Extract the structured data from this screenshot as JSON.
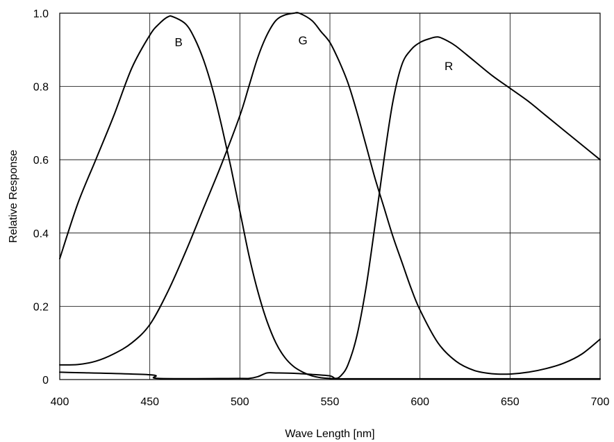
{
  "chart_data": {
    "type": "line",
    "title": "",
    "xlabel": "Wave Length [nm]",
    "ylabel": "Relative Response",
    "xlim": [
      400,
      700
    ],
    "ylim": [
      0,
      1.0
    ],
    "xticks": [
      400,
      450,
      500,
      550,
      600,
      650,
      700
    ],
    "xtick_labels": [
      "400",
      "450",
      "500",
      "550",
      "600",
      "650",
      "700"
    ],
    "yticks": [
      0,
      0.2,
      0.4,
      0.6,
      0.8,
      1.0
    ],
    "ytick_labels": [
      "0",
      "0.2",
      "0.4",
      "0.6",
      "0.8",
      "1.0"
    ],
    "grid": true,
    "legend": "none",
    "series": [
      {
        "name": "B",
        "x": [
          400,
          410,
          420,
          430,
          440,
          450,
          455,
          460,
          463,
          470,
          475,
          480,
          485,
          490,
          495,
          500,
          505,
          510,
          515,
          520,
          525,
          530,
          535,
          540,
          545,
          550,
          553,
          560,
          600,
          650,
          700
        ],
        "y": [
          0.33,
          0.48,
          0.6,
          0.72,
          0.85,
          0.94,
          0.97,
          0.99,
          0.99,
          0.97,
          0.93,
          0.87,
          0.79,
          0.69,
          0.58,
          0.46,
          0.34,
          0.24,
          0.16,
          0.1,
          0.06,
          0.035,
          0.02,
          0.01,
          0.005,
          0.003,
          0.002,
          0.002,
          0.002,
          0.002,
          0.002
        ]
      },
      {
        "name": "G",
        "x": [
          400,
          410,
          420,
          430,
          440,
          450,
          460,
          470,
          480,
          490,
          500,
          505,
          510,
          515,
          520,
          525,
          530,
          533,
          540,
          545,
          550,
          555,
          560,
          565,
          570,
          575,
          580,
          585,
          590,
          595,
          600,
          610,
          620,
          630,
          640,
          650,
          660,
          670,
          680,
          690,
          700
        ],
        "y": [
          0.04,
          0.041,
          0.05,
          0.07,
          0.1,
          0.15,
          0.24,
          0.35,
          0.47,
          0.59,
          0.72,
          0.8,
          0.88,
          0.94,
          0.98,
          0.995,
          1.0,
          1.0,
          0.98,
          0.95,
          0.92,
          0.87,
          0.81,
          0.73,
          0.64,
          0.55,
          0.47,
          0.39,
          0.32,
          0.25,
          0.19,
          0.1,
          0.05,
          0.025,
          0.016,
          0.015,
          0.02,
          0.03,
          0.045,
          0.07,
          0.11
        ]
      },
      {
        "name": "R",
        "x": [
          400,
          450,
          455,
          500,
          505,
          510,
          515,
          520,
          530,
          540,
          550,
          553,
          556,
          560,
          565,
          570,
          575,
          580,
          585,
          590,
          595,
          600,
          605,
          610,
          615,
          620,
          630,
          640,
          650,
          660,
          670,
          680,
          690,
          700
        ],
        "y": [
          0.02,
          0.013,
          0.003,
          0.003,
          0.003,
          0.008,
          0.018,
          0.018,
          0.017,
          0.014,
          0.01,
          0.003,
          0.01,
          0.04,
          0.12,
          0.25,
          0.42,
          0.6,
          0.76,
          0.86,
          0.9,
          0.92,
          0.93,
          0.935,
          0.925,
          0.91,
          0.87,
          0.83,
          0.795,
          0.76,
          0.72,
          0.68,
          0.64,
          0.6
        ]
      }
    ],
    "annotations": [
      {
        "text": "B",
        "x": 466,
        "y": 0.91
      },
      {
        "text": "G",
        "x": 535,
        "y": 0.915
      },
      {
        "text": "R",
        "x": 616,
        "y": 0.845
      }
    ]
  }
}
